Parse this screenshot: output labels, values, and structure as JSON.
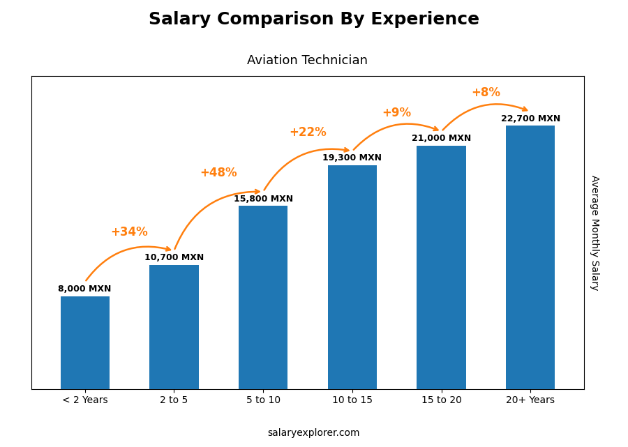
{
  "chart_data": {
    "type": "bar",
    "title": "Salary Comparison By Experience",
    "subtitle": "Aviation Technician",
    "categories": [
      "< 2 Years",
      "2 to 5",
      "5 to 10",
      "10 to 15",
      "15 to 20",
      "20+ Years"
    ],
    "values": [
      8000,
      10700,
      15800,
      19300,
      21000,
      22700
    ],
    "value_labels": [
      "8,000 MXN",
      "10,700 MXN",
      "15,800 MXN",
      "19,300 MXN",
      "21,000 MXN",
      "22,700 MXN"
    ],
    "data_labels": true,
    "annotations": [
      "+34%",
      "+48%",
      "+22%",
      "+9%",
      "+8%"
    ],
    "footer": "salaryexplorer.com",
    "ylabel": "Average Monthly Salary",
    "ylim": [
      0,
      27000
    ],
    "tick_labels": "x"
  }
}
